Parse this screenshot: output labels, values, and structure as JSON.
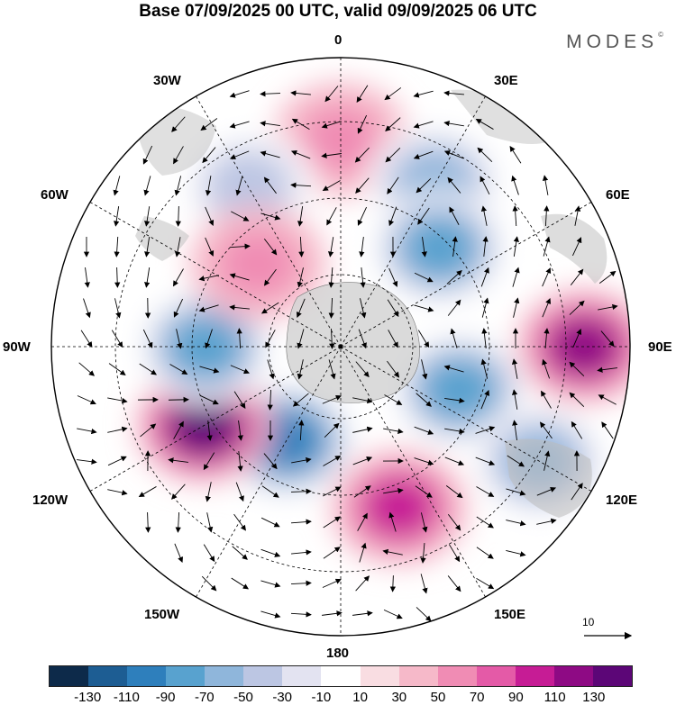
{
  "title": "Base 07/09/2025 00 UTC, valid 09/09/2025 06 UTC",
  "brand": "MODES",
  "brand_mark": "©",
  "map": {
    "projection": "polar-stereographic-south",
    "longitude_labels": {
      "top": "0",
      "bottom": "180",
      "left": "90W",
      "right": "90E",
      "upper_left_inner": "30W",
      "upper_left_outer": "60W",
      "upper_right_inner": "30E",
      "upper_right_outer": "60E",
      "lower_left_outer": "120W",
      "lower_left_inner": "150W",
      "lower_right_outer": "120E",
      "lower_right_inner": "150E"
    },
    "reference_vector_label": "10",
    "anomaly_centers": [
      {
        "sign": "positive",
        "lon_label": "0",
        "strength": 50
      },
      {
        "sign": "negative",
        "lon_label": "30W",
        "strength": -50
      },
      {
        "sign": "negative",
        "lon_label": "30E",
        "strength": -70
      },
      {
        "sign": "negative",
        "lon_label": "45E",
        "strength": -90
      },
      {
        "sign": "positive",
        "lon_label": "90E",
        "strength": 110
      },
      {
        "sign": "negative",
        "lon_label": "110E",
        "strength": -90
      },
      {
        "sign": "negative",
        "lon_label": "120E",
        "strength": -70
      },
      {
        "sign": "positive",
        "lon_label": "160E",
        "strength": 90
      },
      {
        "sign": "negative",
        "lon_label": "150W",
        "strength": -110
      },
      {
        "sign": "positive",
        "lon_label": "120W",
        "strength": 130
      },
      {
        "sign": "negative",
        "lon_label": "90W",
        "strength": -90
      },
      {
        "sign": "positive",
        "lon_label": "45W",
        "strength": 50
      }
    ]
  },
  "colorbar": {
    "colors": [
      "#0d2a4a",
      "#1d5d93",
      "#2e7fbc",
      "#58a2cf",
      "#8fb6db",
      "#bcc6e3",
      "#e3e3f1",
      "#ffffff",
      "#f9dde2",
      "#f6b9c9",
      "#f08cb4",
      "#e45aa7",
      "#c61c95",
      "#8e0a84",
      "#5c0677"
    ],
    "tick_labels": [
      "-130",
      "-110",
      "-90",
      "-70",
      "-50",
      "-30",
      "-10",
      "10",
      "30",
      "50",
      "70",
      "90",
      "110",
      "130"
    ]
  }
}
